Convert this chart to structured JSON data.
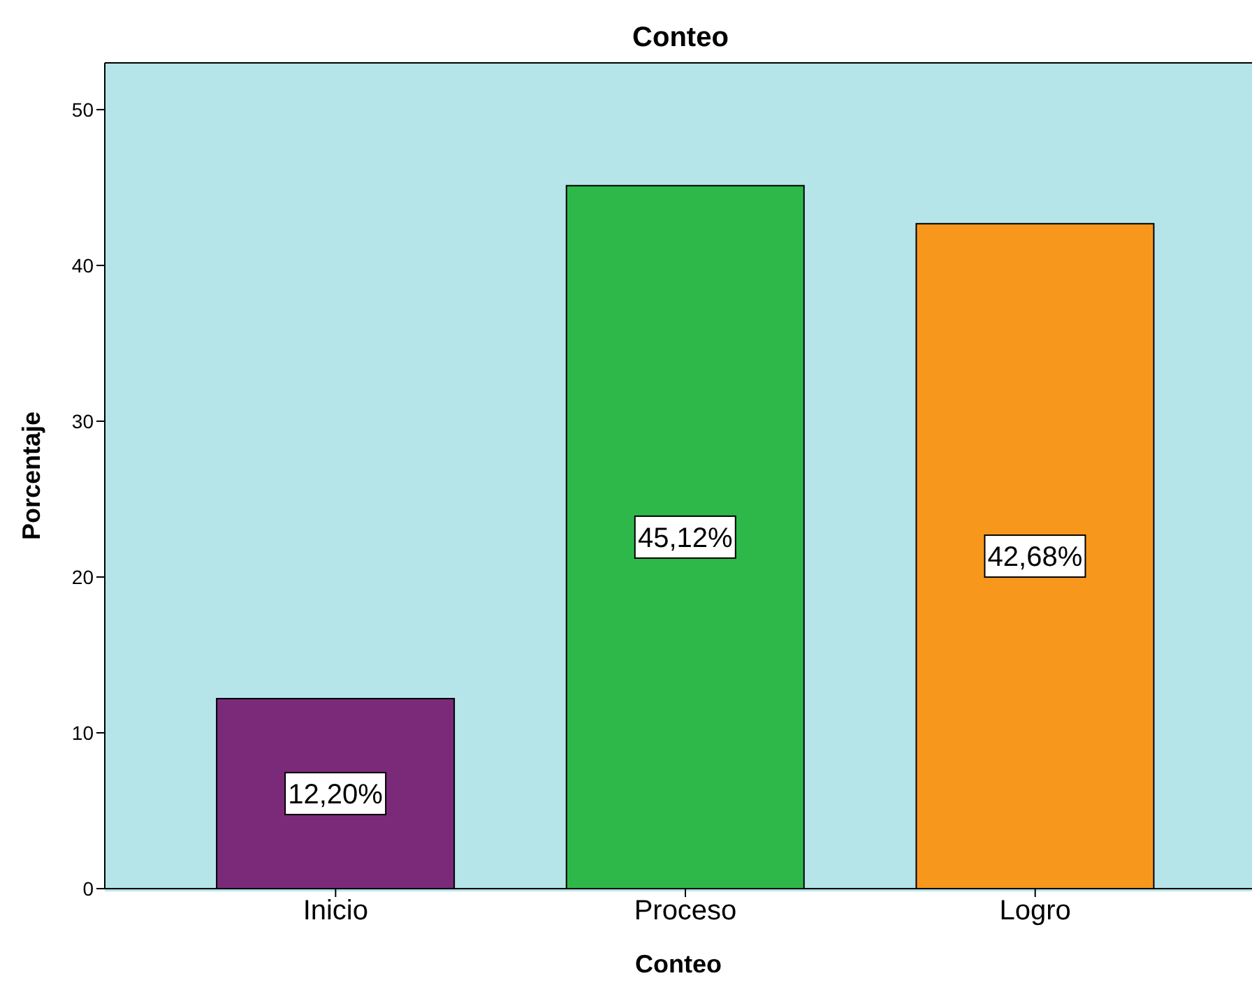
{
  "chart_data": {
    "type": "bar",
    "title": "Conteo",
    "xlabel": "Conteo",
    "ylabel": "Porcentaje",
    "categories": [
      "Inicio",
      "Proceso",
      "Logro"
    ],
    "values": [
      12.2,
      45.12,
      42.68
    ],
    "value_labels": [
      "12,20%",
      "45,12%",
      "42,68%"
    ],
    "colors": [
      "#7b2a7a",
      "#2fb84a",
      "#f7981d"
    ],
    "ylim": [
      0,
      53
    ],
    "yticks": [
      0,
      10,
      20,
      30,
      40,
      50
    ],
    "legend": false
  }
}
